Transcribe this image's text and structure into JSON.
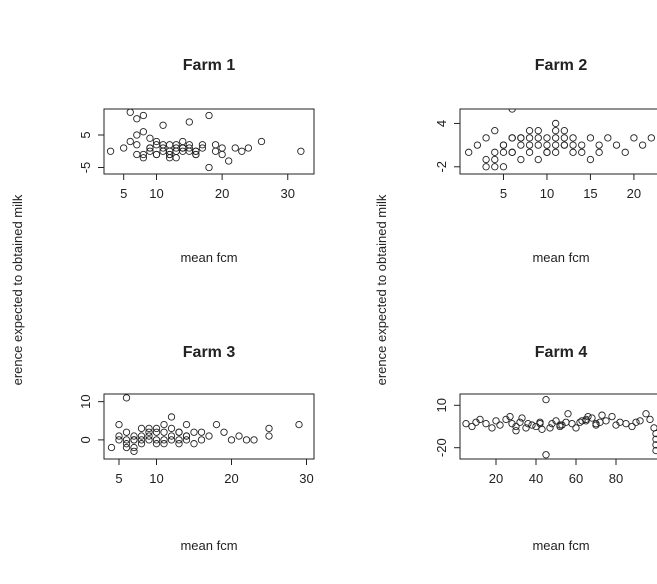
{
  "figure": {
    "ylabel_left": "erence expected to obtained milk",
    "ylabel_right": "erence expected to obtained milk"
  },
  "chart_data": [
    {
      "type": "scatter",
      "title": "Farm 1",
      "xlabel": "mean fcm",
      "ylabel": "difference expected to obtained milk",
      "xlim": [
        2,
        34
      ],
      "ylim": [
        -7,
        13
      ],
      "xticks": [
        5,
        10,
        20,
        30
      ],
      "yticks": [
        -5,
        5
      ],
      "x": [
        3,
        5,
        6,
        7,
        8,
        7,
        9,
        8,
        10,
        10,
        9,
        11,
        12,
        10,
        13,
        14,
        12,
        11,
        15,
        14,
        16,
        15,
        13,
        12,
        14,
        16,
        17,
        18,
        19,
        20,
        21,
        22,
        23,
        24,
        26,
        32,
        8,
        9,
        10,
        11,
        12,
        13,
        14,
        15,
        16,
        7,
        8,
        9,
        11,
        12,
        13,
        14,
        15,
        16,
        17,
        6,
        7,
        18,
        19,
        20
      ],
      "y": [
        0,
        1,
        12,
        10,
        11,
        5,
        0,
        -2,
        2,
        -1,
        1,
        0,
        -1,
        3,
        1,
        0,
        2,
        8,
        9,
        1,
        -1,
        0,
        2,
        -2,
        1,
        0,
        1,
        11,
        2,
        -1,
        -3,
        1,
        0,
        1,
        3,
        0,
        6,
        4,
        -1,
        1,
        0,
        -2,
        1,
        2,
        0,
        2,
        -1,
        1,
        2,
        -1,
        0,
        3,
        1,
        -1,
        2,
        3,
        -1,
        -5,
        0,
        1
      ]
    },
    {
      "type": "scatter",
      "title": "Farm 2",
      "xlabel": "mean fcm",
      "ylabel": "difference expected to obtained milk",
      "xlim": [
        0,
        23
      ],
      "ylim": [
        -3,
        6
      ],
      "xticks": [
        5,
        10,
        15,
        20
      ],
      "yticks": [
        -2,
        4
      ],
      "x": [
        1,
        2,
        3,
        3,
        4,
        4,
        5,
        5,
        6,
        6,
        6,
        7,
        7,
        7,
        8,
        8,
        8,
        9,
        9,
        9,
        10,
        10,
        10,
        11,
        11,
        11,
        11,
        12,
        12,
        12,
        13,
        13,
        13,
        14,
        14,
        15,
        15,
        16,
        16,
        17,
        18,
        19,
        20,
        21,
        22,
        4,
        5,
        6,
        7,
        8,
        9,
        10,
        11,
        12,
        3,
        4,
        5,
        6
      ],
      "y": [
        0,
        1,
        -1,
        2,
        0,
        3,
        -2,
        1,
        0,
        2,
        6,
        1,
        2,
        -1,
        0,
        2,
        3,
        1,
        -1,
        2,
        0,
        2,
        1,
        1,
        3,
        4,
        0,
        2,
        1,
        3,
        0,
        1,
        2,
        0,
        1,
        2,
        -1,
        0,
        1,
        2,
        1,
        0,
        2,
        1,
        2,
        -2,
        1,
        0,
        2,
        1,
        3,
        0,
        2,
        1,
        -2,
        -1,
        0,
        2
      ]
    },
    {
      "type": "scatter",
      "title": "Farm 3",
      "xlabel": "mean fcm",
      "ylabel": "difference expected to obtained milk",
      "xlim": [
        3,
        31
      ],
      "ylim": [
        -5,
        12
      ],
      "xticks": [
        5,
        10,
        20,
        30
      ],
      "yticks": [
        0,
        10
      ],
      "x": [
        4,
        5,
        5,
        6,
        6,
        6,
        7,
        7,
        7,
        8,
        8,
        8,
        9,
        9,
        9,
        10,
        10,
        10,
        11,
        11,
        11,
        12,
        12,
        12,
        13,
        13,
        13,
        14,
        14,
        14,
        15,
        15,
        16,
        16,
        17,
        18,
        19,
        20,
        21,
        22,
        23,
        25,
        25,
        29,
        6,
        7,
        8,
        9,
        10,
        11,
        12,
        13,
        14,
        5,
        6,
        7
      ],
      "y": [
        -2,
        4,
        0,
        2,
        -1,
        11,
        1,
        -3,
        0,
        3,
        0,
        -1,
        2,
        0,
        1,
        3,
        -1,
        0,
        2,
        4,
        0,
        1,
        6,
        3,
        0,
        2,
        -1,
        1,
        0,
        4,
        2,
        -1,
        0,
        2,
        1,
        4,
        2,
        0,
        1,
        0,
        0,
        3,
        1,
        4,
        -2,
        0,
        1,
        3,
        2,
        -1,
        0,
        2,
        1,
        1,
        0,
        -2
      ]
    },
    {
      "type": "scatter",
      "title": "Farm 4",
      "xlabel": "mean fcm",
      "ylabel": "difference expected to obtained milk",
      "xlim": [
        2,
        102
      ],
      "ylim": [
        -28,
        18
      ],
      "xticks": [
        20,
        40,
        60,
        80
      ],
      "yticks": [
        -20,
        10
      ],
      "x": [
        5,
        8,
        10,
        12,
        15,
        18,
        20,
        22,
        25,
        27,
        28,
        30,
        32,
        33,
        35,
        36,
        38,
        40,
        42,
        43,
        45,
        47,
        48,
        50,
        52,
        53,
        55,
        56,
        58,
        60,
        62,
        63,
        65,
        66,
        68,
        70,
        72,
        73,
        75,
        78,
        80,
        82,
        85,
        88,
        90,
        92,
        95,
        97,
        99,
        100,
        100,
        100,
        100,
        30,
        42,
        52,
        45,
        65,
        70
      ],
      "y": [
        -3,
        -5,
        -2,
        0,
        -3,
        -6,
        -1,
        -4,
        0,
        2,
        -3,
        -5,
        -2,
        1,
        -6,
        -3,
        -4,
        -5,
        -2,
        -7,
        -25,
        -6,
        -3,
        -1,
        -5,
        -4,
        -2,
        4,
        -3,
        -6,
        -2,
        -1,
        0,
        2,
        1,
        -3,
        -2,
        3,
        -1,
        2,
        -4,
        -2,
        -3,
        -5,
        -2,
        -1,
        4,
        0,
        -6,
        -10,
        -14,
        -18,
        -22,
        -8,
        -3,
        -4,
        14,
        -1,
        -4
      ]
    }
  ]
}
